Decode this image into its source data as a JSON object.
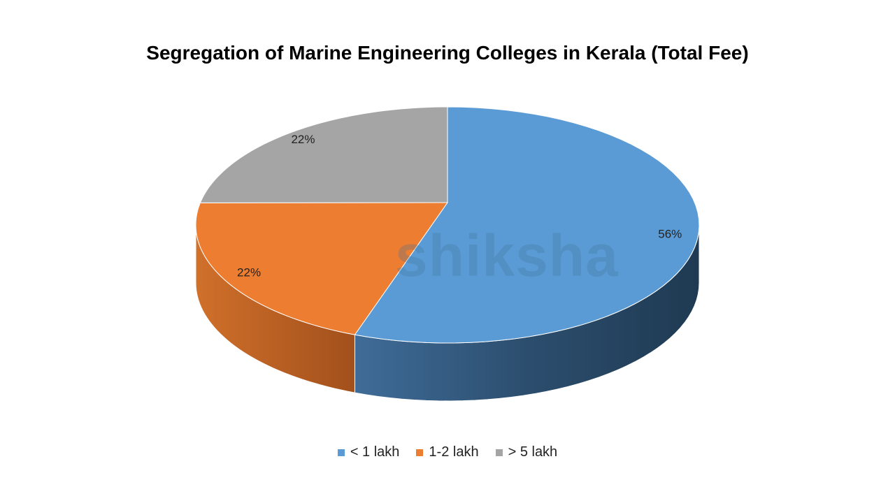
{
  "chart_data": {
    "type": "pie",
    "style": "3d",
    "title": "Segregation of Marine Engineering Colleges in Kerala (Total Fee)",
    "categories": [
      "< 1 lakh",
      "1-2 lakh",
      "> 5 lakh"
    ],
    "values": [
      56,
      22,
      22
    ],
    "labels": [
      "56%",
      "22%",
      "22%"
    ],
    "colors": [
      "#5B9BD5",
      "#ED7D31",
      "#A5A5A5"
    ],
    "side_colors": [
      "#2E5478",
      "#B5561C"
    ],
    "legend_position": "bottom"
  },
  "watermark": "shiksha"
}
